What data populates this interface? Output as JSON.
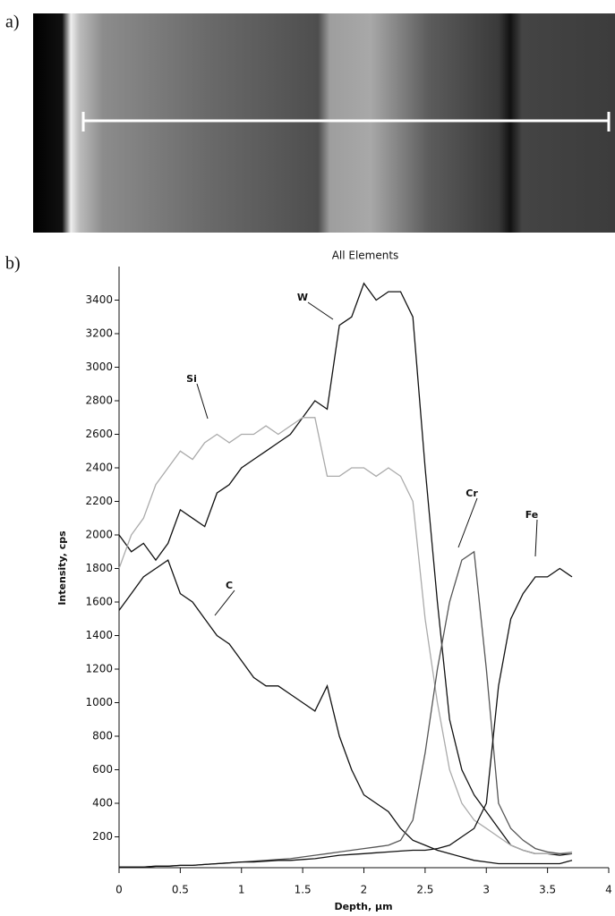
{
  "panels": {
    "a": "a)",
    "b": "b)"
  },
  "chart_data": {
    "type": "line",
    "title": "All Elements",
    "x_label": "Depth, µm",
    "y_label": "Intensity, cps",
    "x": [
      0,
      0.1,
      0.2,
      0.3,
      0.4,
      0.5,
      0.6,
      0.7,
      0.8,
      0.9,
      1.0,
      1.1,
      1.2,
      1.3,
      1.4,
      1.5,
      1.6,
      1.7,
      1.8,
      1.9,
      2.0,
      2.1,
      2.2,
      2.3,
      2.4,
      2.5,
      2.6,
      2.7,
      2.8,
      2.9,
      3.0,
      3.1,
      3.2,
      3.3,
      3.4,
      3.5,
      3.6,
      3.7
    ],
    "series": [
      {
        "name": "W",
        "color": "#111111",
        "values": [
          2000,
          1900,
          1950,
          1850,
          1950,
          2150,
          2100,
          2050,
          2250,
          2300,
          2400,
          2450,
          2500,
          2550,
          2600,
          2700,
          2800,
          2750,
          3250,
          3300,
          3500,
          3400,
          3450,
          3450,
          3300,
          2400,
          1600,
          900,
          600,
          450,
          350,
          250,
          150,
          120,
          100,
          100,
          90,
          100
        ]
      },
      {
        "name": "Si",
        "color": "#aaaaaa",
        "values": [
          1800,
          2000,
          2100,
          2300,
          2400,
          2500,
          2450,
          2550,
          2600,
          2550,
          2600,
          2600,
          2650,
          2600,
          2650,
          2700,
          2700,
          2350,
          2350,
          2400,
          2400,
          2350,
          2400,
          2350,
          2200,
          1500,
          1000,
          600,
          400,
          300,
          250,
          200,
          150,
          120,
          100,
          100,
          100,
          110
        ]
      },
      {
        "name": "C",
        "color": "#111111",
        "values": [
          1550,
          1650,
          1750,
          1800,
          1850,
          1650,
          1600,
          1500,
          1400,
          1350,
          1250,
          1150,
          1100,
          1100,
          1050,
          1000,
          950,
          1100,
          800,
          600,
          450,
          400,
          350,
          250,
          180,
          150,
          120,
          100,
          80,
          60,
          50,
          40,
          40,
          40,
          40,
          40,
          40,
          60
        ]
      },
      {
        "name": "Cr",
        "color": "#555555",
        "values": [
          20,
          20,
          20,
          25,
          25,
          30,
          30,
          35,
          40,
          45,
          50,
          55,
          60,
          65,
          70,
          80,
          90,
          100,
          110,
          120,
          130,
          140,
          150,
          180,
          300,
          700,
          1200,
          1600,
          1850,
          1900,
          1200,
          400,
          250,
          180,
          130,
          110,
          100,
          100
        ]
      },
      {
        "name": "Fe",
        "color": "#111111",
        "values": [
          20,
          20,
          20,
          25,
          25,
          30,
          30,
          35,
          40,
          45,
          50,
          50,
          55,
          60,
          60,
          65,
          70,
          80,
          90,
          95,
          100,
          105,
          110,
          115,
          120,
          120,
          130,
          150,
          200,
          250,
          400,
          1100,
          1500,
          1650,
          1750,
          1750,
          1800,
          1750
        ]
      }
    ],
    "xlim": [
      0,
      4
    ],
    "xticks": [
      0,
      0.5,
      1,
      1.5,
      2,
      2.5,
      3,
      3.5,
      4
    ],
    "ylim": [
      0,
      3600
    ],
    "yticks": [
      200,
      400,
      600,
      800,
      1000,
      1200,
      1400,
      1600,
      1800,
      2000,
      2200,
      2400,
      2600,
      2800,
      3000,
      3200,
      3400
    ]
  }
}
